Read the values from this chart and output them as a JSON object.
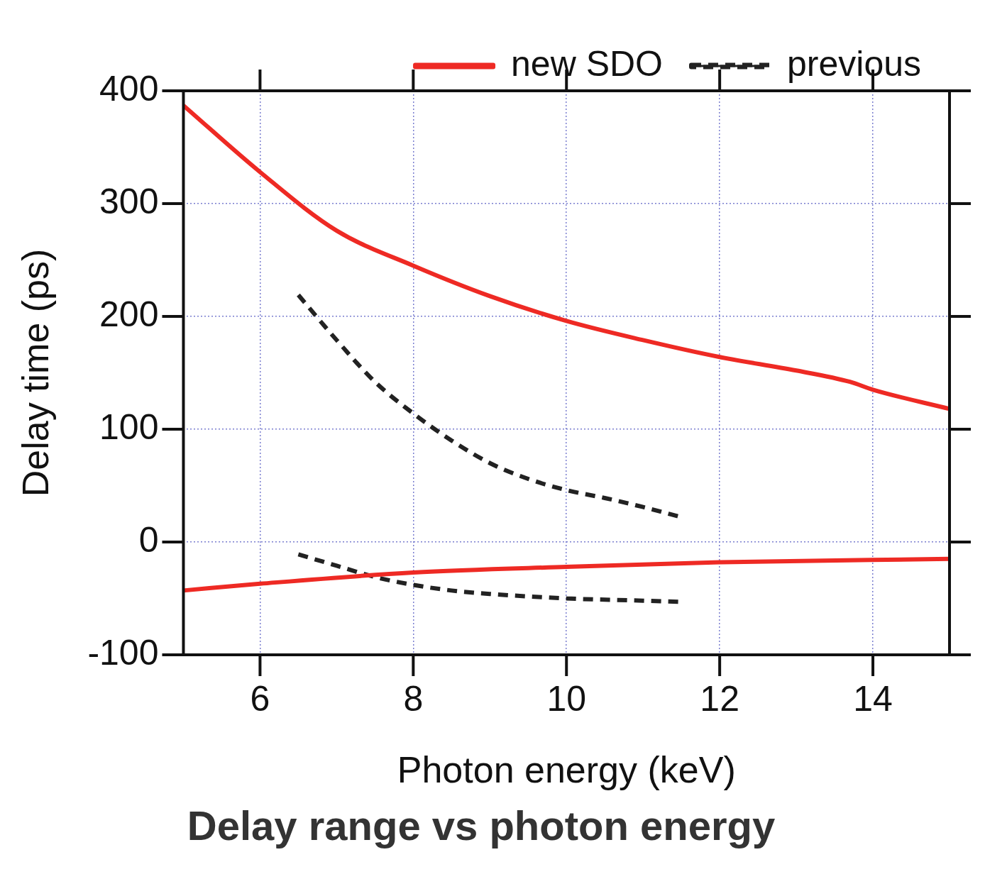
{
  "chart_data": {
    "type": "line",
    "title": "Delay range vs photon energy",
    "xlabel": "Photon energy (keV)",
    "ylabel": "Delay time (ps)",
    "xlim": [
      5,
      15
    ],
    "xticks": [
      6,
      8,
      10,
      12,
      14
    ],
    "ylim": [
      -100,
      400
    ],
    "yticks": [
      -100,
      0,
      100,
      200,
      300,
      400
    ],
    "grid": true,
    "legend": "top right",
    "marker": "none",
    "series": [
      {
        "name": "new SDO",
        "color": "#ee2a24",
        "line_style": "solid",
        "x": [
          5,
          6,
          7,
          8,
          9,
          10,
          11,
          12,
          13,
          13.7,
          14,
          15
        ],
        "values": [
          387,
          328,
          276,
          245,
          218,
          196,
          179,
          164,
          152,
          142,
          135,
          118
        ]
      },
      {
        "color": "#ee2a24",
        "line_style": "solid",
        "x": [
          5,
          6,
          8,
          10,
          12,
          15
        ],
        "values": [
          -43,
          -37,
          -27,
          -22,
          -18,
          -15
        ]
      },
      {
        "name": "previous",
        "color": "#222222",
        "line_style": "dashed",
        "x": [
          6.5,
          7,
          7.5,
          8,
          8.5,
          9,
          9.5,
          10,
          10.5,
          11,
          11.5
        ],
        "values": [
          219,
          179,
          142,
          114,
          90,
          70,
          56,
          46,
          39,
          31,
          22
        ]
      },
      {
        "color": "#222222",
        "line_style": "dashed",
        "x": [
          6.5,
          7,
          7.5,
          8,
          8.5,
          9,
          10,
          11,
          11.5
        ],
        "values": [
          -11,
          -21,
          -31,
          -38,
          -43,
          -46,
          -50,
          -52,
          -53
        ]
      }
    ]
  }
}
